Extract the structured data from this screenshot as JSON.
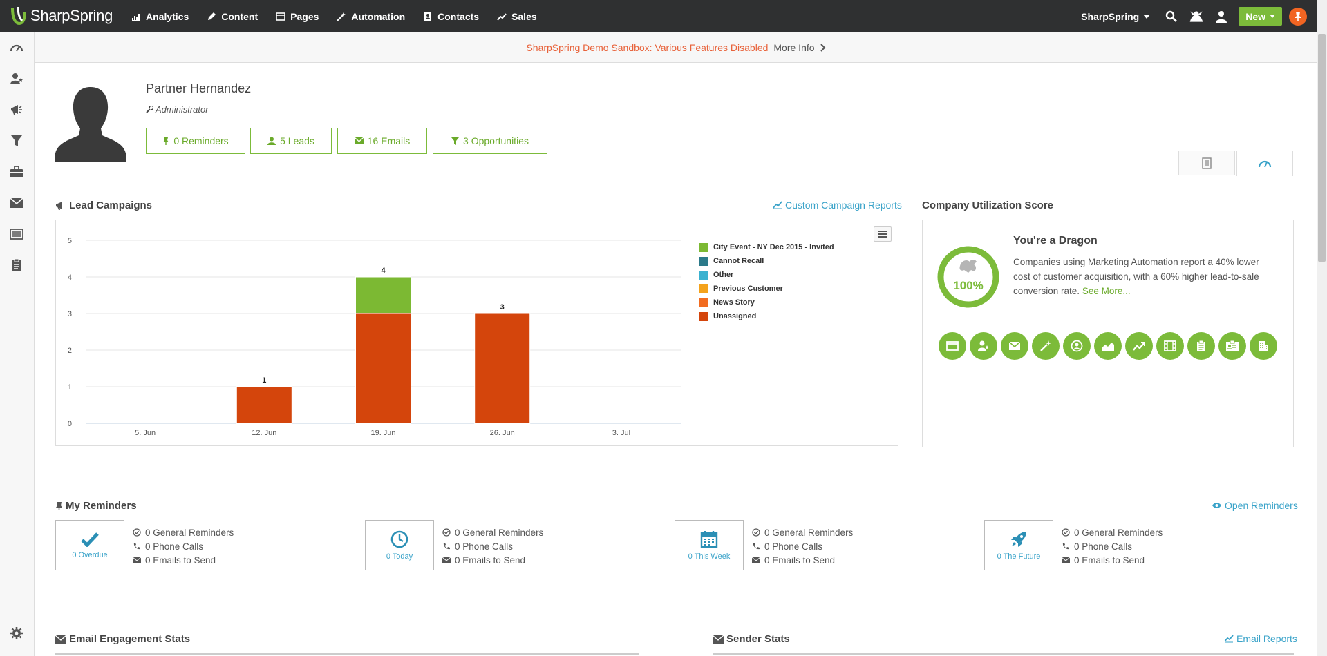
{
  "nav": {
    "brand": "SharpSpring",
    "items": [
      {
        "id": "analytics",
        "label": "Analytics",
        "icon": "bar-chart-icon"
      },
      {
        "id": "content",
        "label": "Content",
        "icon": "pencil-icon"
      },
      {
        "id": "pages",
        "label": "Pages",
        "icon": "window-icon"
      },
      {
        "id": "automation",
        "label": "Automation",
        "icon": "magic-wand-icon"
      },
      {
        "id": "contacts",
        "label": "Contacts",
        "icon": "address-book-icon"
      },
      {
        "id": "sales",
        "label": "Sales",
        "icon": "trend-line-icon"
      }
    ],
    "account": "SharpSpring",
    "new_label": "New"
  },
  "banner": {
    "warning": "SharpSpring Demo Sandbox: Various Features Disabled",
    "link": "More Info"
  },
  "profile": {
    "name": "Partner Hernandez",
    "role": "Administrator",
    "buttons": [
      {
        "label": "0 Reminders",
        "icon": "pin-icon"
      },
      {
        "label": "5 Leads",
        "icon": "user-icon"
      },
      {
        "label": "16 Emails",
        "icon": "envelope-icon"
      },
      {
        "label": "3 Opportunities",
        "icon": "funnel-icon"
      }
    ]
  },
  "lead_campaigns": {
    "title": "Lead Campaigns",
    "link": "Custom Campaign Reports"
  },
  "chart_data": {
    "type": "bar",
    "stacked": true,
    "categories": [
      "5. Jun",
      "12. Jun",
      "19. Jun",
      "26. Jun",
      "3. Jul"
    ],
    "series": [
      {
        "name": "City Event - NY Dec 2015 - Invited",
        "color": "#7cb933",
        "values": [
          0,
          0,
          1,
          0,
          0
        ]
      },
      {
        "name": "Cannot Recall",
        "color": "#2c7a8a",
        "values": [
          0,
          0,
          0,
          0,
          0
        ]
      },
      {
        "name": "Other",
        "color": "#3bb2d0",
        "values": [
          0,
          0,
          0,
          0,
          0
        ]
      },
      {
        "name": "Previous Customer",
        "color": "#f4a21b",
        "values": [
          0,
          0,
          0,
          0,
          0
        ]
      },
      {
        "name": "News Story",
        "color": "#f26c20",
        "values": [
          0,
          0,
          0,
          0,
          0
        ]
      },
      {
        "name": "Unassigned",
        "color": "#d4450c",
        "values": [
          0,
          1,
          3,
          3,
          0
        ]
      }
    ],
    "totals": [
      null,
      1,
      4,
      3,
      null
    ],
    "ylim": [
      0,
      5
    ],
    "yticks": [
      0,
      1,
      2,
      3,
      4,
      5
    ],
    "grid": true,
    "legend_position": "right"
  },
  "utilization": {
    "title": "Company Utilization Score",
    "percent": "100%",
    "headline": "You're a Dragon",
    "text": "Companies using Marketing Automation report a 40% lower cost of customer acquisition, with a 60% higher lead-to-sale conversion rate.",
    "link": "See More...",
    "feature_icons": [
      "window-icon",
      "user-star-icon",
      "envelope-icon",
      "magic-wand-icon",
      "contact-circle-icon",
      "area-chart-icon",
      "trend-line-icon",
      "film-icon",
      "clipboard-icon",
      "id-card-icon",
      "building-icon"
    ]
  },
  "reminders": {
    "title": "My Reminders",
    "link": "Open Reminders",
    "groups": [
      {
        "label": "0 Overdue",
        "icon": "checkmark-icon",
        "general": "0 General Reminders",
        "calls": "0 Phone Calls",
        "emails": "0 Emails to Send"
      },
      {
        "label": "0 Today",
        "icon": "clock-icon",
        "general": "0 General Reminders",
        "calls": "0 Phone Calls",
        "emails": "0 Emails to Send"
      },
      {
        "label": "0 This Week",
        "icon": "calendar-icon",
        "general": "0 General Reminders",
        "calls": "0 Phone Calls",
        "emails": "0 Emails to Send"
      },
      {
        "label": "0 The Future",
        "icon": "rocket-icon",
        "general": "0 General Reminders",
        "calls": "0 Phone Calls",
        "emails": "0 Emails to Send"
      }
    ]
  },
  "email_stats": {
    "title": "Email Engagement Stats"
  },
  "sender_stats": {
    "title": "Sender Stats",
    "link": "Email Reports"
  },
  "colors": {
    "brand_green": "#7cbb3a",
    "link_blue": "#3aa3c9",
    "accent_orange": "#f26522",
    "nav_bg": "#2f3031"
  }
}
